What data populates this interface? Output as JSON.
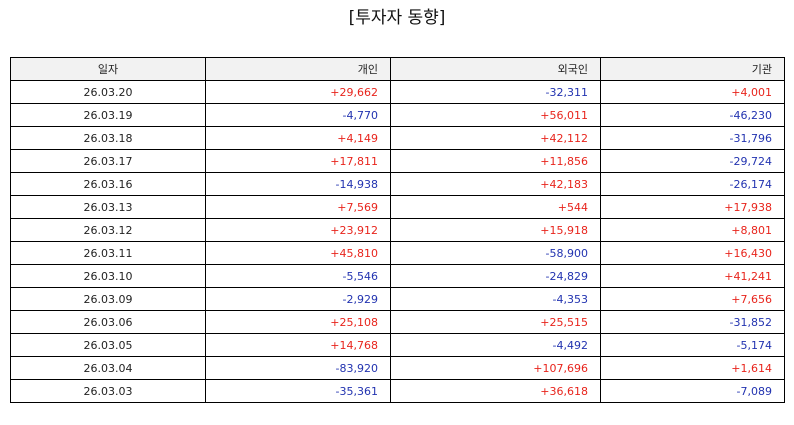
{
  "title": "[투자자 동향]",
  "columns": {
    "date": "일자",
    "individual": "개인",
    "foreign": "외국인",
    "institution": "기관"
  },
  "colors": {
    "positive": "#e8241c",
    "negative": "#2233b0",
    "header_bg": "#f2f2f2"
  },
  "rows": [
    {
      "date": "26.03.20",
      "individual": "+29,662",
      "foreign": "-32,311",
      "institution": "+4,001"
    },
    {
      "date": "26.03.19",
      "individual": "-4,770",
      "foreign": "+56,011",
      "institution": "-46,230"
    },
    {
      "date": "26.03.18",
      "individual": "+4,149",
      "foreign": "+42,112",
      "institution": "-31,796"
    },
    {
      "date": "26.03.17",
      "individual": "+17,811",
      "foreign": "+11,856",
      "institution": "-29,724"
    },
    {
      "date": "26.03.16",
      "individual": "-14,938",
      "foreign": "+42,183",
      "institution": "-26,174"
    },
    {
      "date": "26.03.13",
      "individual": "+7,569",
      "foreign": "+544",
      "institution": "+17,938"
    },
    {
      "date": "26.03.12",
      "individual": "+23,912",
      "foreign": "+15,918",
      "institution": "+8,801"
    },
    {
      "date": "26.03.11",
      "individual": "+45,810",
      "foreign": "-58,900",
      "institution": "+16,430"
    },
    {
      "date": "26.03.10",
      "individual": "-5,546",
      "foreign": "-24,829",
      "institution": "+41,241"
    },
    {
      "date": "26.03.09",
      "individual": "-2,929",
      "foreign": "-4,353",
      "institution": "+7,656"
    },
    {
      "date": "26.03.06",
      "individual": "+25,108",
      "foreign": "+25,515",
      "institution": "-31,852"
    },
    {
      "date": "26.03.05",
      "individual": "+14,768",
      "foreign": "-4,492",
      "institution": "-5,174"
    },
    {
      "date": "26.03.04",
      "individual": "-83,920",
      "foreign": "+107,696",
      "institution": "+1,614"
    },
    {
      "date": "26.03.03",
      "individual": "-35,361",
      "foreign": "+36,618",
      "institution": "-7,089"
    }
  ]
}
